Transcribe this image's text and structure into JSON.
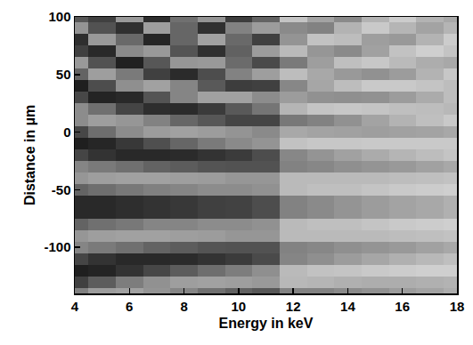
{
  "chart_data": {
    "type": "heatmap",
    "x_label": "Energy in keV",
    "y_label": "Distance in µm",
    "x": [
      4,
      5,
      6,
      7,
      8,
      9,
      10,
      11,
      12,
      13,
      14,
      15,
      16,
      17,
      18
    ],
    "y": [
      -140,
      -130,
      -120,
      -110,
      -100,
      -90,
      -80,
      -70,
      -60,
      -50,
      -40,
      -30,
      -20,
      -10,
      0,
      10,
      20,
      30,
      40,
      50,
      60,
      70,
      80,
      90,
      100
    ],
    "cells": [
      [
        0.5,
        0.25,
        0.12,
        0.27,
        0.52,
        0.59,
        0.39,
        0.16,
        0.16,
        0.39,
        0.59,
        0.52,
        0.27,
        0.12,
        0.28,
        0.55,
        0.55,
        0.28,
        0.12,
        0.39,
        0.6,
        0.25,
        0.18,
        0.58,
        0.34
      ],
      [
        0.61,
        0.36,
        0.14,
        0.2,
        0.48,
        0.62,
        0.44,
        0.16,
        0.16,
        0.43,
        0.62,
        0.48,
        0.2,
        0.15,
        0.43,
        0.62,
        0.44,
        0.14,
        0.3,
        0.62,
        0.32,
        0.16,
        0.6,
        0.32,
        0.25
      ],
      [
        0.63,
        0.49,
        0.2,
        0.16,
        0.44,
        0.63,
        0.47,
        0.18,
        0.18,
        0.47,
        0.63,
        0.44,
        0.16,
        0.22,
        0.55,
        0.59,
        0.27,
        0.16,
        0.56,
        0.48,
        0.13,
        0.54,
        0.41,
        0.19,
        0.6
      ],
      [
        0.58,
        0.57,
        0.28,
        0.16,
        0.39,
        0.63,
        0.52,
        0.2,
        0.2,
        0.5,
        0.63,
        0.39,
        0.16,
        0.31,
        0.61,
        0.51,
        0.18,
        0.33,
        0.63,
        0.25,
        0.34,
        0.6,
        0.15,
        0.62,
        0.18
      ],
      [
        0.52,
        0.62,
        0.36,
        0.17,
        0.36,
        0.62,
        0.52,
        0.22,
        0.22,
        0.52,
        0.62,
        0.36,
        0.17,
        0.4,
        0.63,
        0.4,
        0.17,
        0.52,
        0.52,
        0.17,
        0.59,
        0.33,
        0.4,
        0.4,
        0.44
      ],
      [
        0.44,
        0.63,
        0.43,
        0.2,
        0.33,
        0.61,
        0.55,
        0.25,
        0.25,
        0.55,
        0.61,
        0.33,
        0.2,
        0.48,
        0.61,
        0.34,
        0.23,
        0.63,
        0.35,
        0.3,
        0.6,
        0.19,
        0.63,
        0.19,
        0.58
      ],
      [
        0.38,
        0.62,
        0.49,
        0.23,
        0.32,
        0.59,
        0.55,
        0.26,
        0.26,
        0.55,
        0.59,
        0.32,
        0.23,
        0.54,
        0.58,
        0.27,
        0.35,
        0.63,
        0.24,
        0.51,
        0.42,
        0.38,
        0.41,
        0.51,
        0.24
      ],
      [
        0.34,
        0.6,
        0.56,
        0.29,
        0.32,
        0.59,
        0.57,
        0.3,
        0.3,
        0.57,
        0.59,
        0.32,
        0.3,
        0.58,
        0.54,
        0.27,
        0.46,
        0.55,
        0.25,
        0.62,
        0.29,
        0.61,
        0.25,
        0.61,
        0.39
      ],
      [
        0.51,
        0.72,
        0.73,
        0.52,
        0.51,
        0.73,
        0.73,
        0.51,
        0.51,
        0.73,
        0.73,
        0.51,
        0.53,
        0.76,
        0.66,
        0.47,
        0.71,
        0.61,
        0.53,
        0.74,
        0.48,
        0.73,
        0.58,
        0.54,
        0.77
      ],
      [
        0.51,
        0.71,
        0.76,
        0.56,
        0.53,
        0.73,
        0.75,
        0.54,
        0.54,
        0.75,
        0.73,
        0.53,
        0.58,
        0.78,
        0.64,
        0.51,
        0.77,
        0.57,
        0.65,
        0.66,
        0.62,
        0.59,
        0.76,
        0.51,
        0.64
      ],
      [
        0.54,
        0.69,
        0.77,
        0.61,
        0.56,
        0.73,
        0.75,
        0.58,
        0.58,
        0.75,
        0.73,
        0.56,
        0.63,
        0.78,
        0.63,
        0.57,
        0.78,
        0.56,
        0.74,
        0.6,
        0.75,
        0.54,
        0.74,
        0.7,
        0.54
      ],
      [
        0.57,
        0.68,
        0.79,
        0.65,
        0.58,
        0.73,
        0.77,
        0.61,
        0.61,
        0.77,
        0.73,
        0.58,
        0.67,
        0.79,
        0.62,
        0.64,
        0.77,
        0.57,
        0.79,
        0.57,
        0.78,
        0.63,
        0.62,
        0.79,
        0.7
      ],
      [
        0.61,
        0.68,
        0.8,
        0.69,
        0.6,
        0.74,
        0.79,
        0.64,
        0.64,
        0.79,
        0.74,
        0.6,
        0.71,
        0.79,
        0.63,
        0.7,
        0.75,
        0.61,
        0.79,
        0.61,
        0.73,
        0.76,
        0.6,
        0.71,
        0.8
      ],
      [
        0.64,
        0.69,
        0.81,
        0.72,
        0.63,
        0.75,
        0.8,
        0.66,
        0.66,
        0.8,
        0.75,
        0.63,
        0.74,
        0.79,
        0.64,
        0.75,
        0.74,
        0.67,
        0.77,
        0.7,
        0.68,
        0.81,
        0.7,
        0.64,
        0.7
      ],
      [
        0.68,
        0.7,
        0.81,
        0.75,
        0.66,
        0.76,
        0.81,
        0.69,
        0.69,
        0.81,
        0.76,
        0.66,
        0.77,
        0.79,
        0.66,
        0.79,
        0.72,
        0.74,
        0.74,
        0.78,
        0.66,
        0.77,
        0.8,
        0.71,
        0.66
      ]
    ],
    "zlim": [
      0,
      1
    ],
    "xlim": [
      4,
      18
    ],
    "xticks": [
      4,
      6,
      8,
      10,
      12,
      14,
      16,
      18
    ],
    "ylim": [
      -140,
      100
    ],
    "yticks": [
      -100,
      -50,
      0,
      50,
      100
    ],
    "grid": false
  }
}
